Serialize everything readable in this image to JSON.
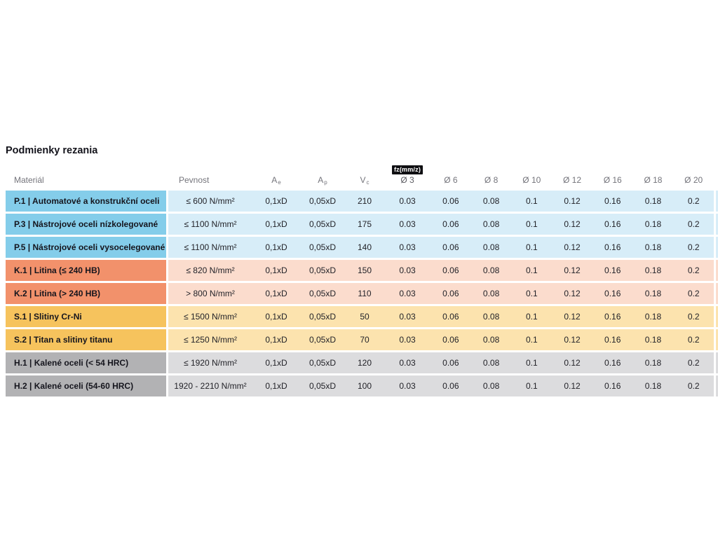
{
  "title": "Podmienky rezania",
  "table": {
    "headers": {
      "material": "Materiál",
      "pevnost": "Pevnost",
      "ae": {
        "main": "A",
        "sub": "e"
      },
      "ap": {
        "main": "A",
        "sub": "p"
      },
      "vc": {
        "main": "V",
        "sub": "c"
      },
      "fz_badge": "fz(mm/z)",
      "diameters": [
        "Ø 3",
        "Ø 6",
        "Ø 8",
        "Ø 10",
        "Ø 12",
        "Ø 16",
        "Ø 18",
        "Ø 20"
      ]
    },
    "colors": {
      "P": {
        "dark": "#84cdea",
        "light": "#d7edf8"
      },
      "K": {
        "dark": "#f2916b",
        "light": "#fbdccd"
      },
      "S": {
        "dark": "#f6c35d",
        "light": "#fce3ae"
      },
      "H": {
        "dark": "#b2b2b4",
        "light": "#dcdcde"
      }
    },
    "rows": [
      {
        "group": "P",
        "material": "P.1 | Automatové a konstrukční oceli",
        "pevnost": "≤ 600 N/mm²",
        "ae": "0,1xD",
        "ap": "0,05xD",
        "vc": "210",
        "fz": [
          "0.03",
          "0.06",
          "0.08",
          "0.1",
          "0.12",
          "0.16",
          "0.18",
          "0.2"
        ]
      },
      {
        "group": "P",
        "material": "P.3 | Nástrojové oceli nízkolegované",
        "pevnost": "≤ 1100 N/mm²",
        "ae": "0,1xD",
        "ap": "0,05xD",
        "vc": "175",
        "fz": [
          "0.03",
          "0.06",
          "0.08",
          "0.1",
          "0.12",
          "0.16",
          "0.18",
          "0.2"
        ]
      },
      {
        "group": "P",
        "material": "P.5 | Nástrojové oceli vysocelegované",
        "pevnost": "≤ 1100 N/mm²",
        "ae": "0,1xD",
        "ap": "0,05xD",
        "vc": "140",
        "fz": [
          "0.03",
          "0.06",
          "0.08",
          "0.1",
          "0.12",
          "0.16",
          "0.18",
          "0.2"
        ]
      },
      {
        "group": "K",
        "material": "K.1 | Litina (≤ 240 HB)",
        "pevnost": "≤ 820 N/mm²",
        "ae": "0,1xD",
        "ap": "0,05xD",
        "vc": "150",
        "fz": [
          "0.03",
          "0.06",
          "0.08",
          "0.1",
          "0.12",
          "0.16",
          "0.18",
          "0.2"
        ]
      },
      {
        "group": "K",
        "material": "K.2 | Litina (> 240 HB)",
        "pevnost": "> 800 N/mm²",
        "ae": "0,1xD",
        "ap": "0,05xD",
        "vc": "110",
        "fz": [
          "0.03",
          "0.06",
          "0.08",
          "0.1",
          "0.12",
          "0.16",
          "0.18",
          "0.2"
        ]
      },
      {
        "group": "S",
        "material": "S.1 | Slitiny Cr-Ni",
        "pevnost": "≤ 1500 N/mm²",
        "ae": "0,1xD",
        "ap": "0,05xD",
        "vc": "50",
        "fz": [
          "0.03",
          "0.06",
          "0.08",
          "0.1",
          "0.12",
          "0.16",
          "0.18",
          "0.2"
        ]
      },
      {
        "group": "S",
        "material": "S.2 | Titan a slitiny titanu",
        "pevnost": "≤ 1250 N/mm²",
        "ae": "0,1xD",
        "ap": "0,05xD",
        "vc": "70",
        "fz": [
          "0.03",
          "0.06",
          "0.08",
          "0.1",
          "0.12",
          "0.16",
          "0.18",
          "0.2"
        ]
      },
      {
        "group": "H",
        "material": "H.1 | Kalené oceli (< 54 HRC)",
        "pevnost": "≤ 1920 N/mm²",
        "ae": "0,1xD",
        "ap": "0,05xD",
        "vc": "120",
        "fz": [
          "0.03",
          "0.06",
          "0.08",
          "0.1",
          "0.12",
          "0.16",
          "0.18",
          "0.2"
        ]
      },
      {
        "group": "H",
        "material": "H.2 | Kalené oceli (54-60 HRC)",
        "pevnost": "1920 - 2210 N/mm²",
        "ae": "0,1xD",
        "ap": "0,05xD",
        "vc": "100",
        "fz": [
          "0.03",
          "0.06",
          "0.08",
          "0.1",
          "0.12",
          "0.16",
          "0.18",
          "0.2"
        ]
      }
    ]
  }
}
